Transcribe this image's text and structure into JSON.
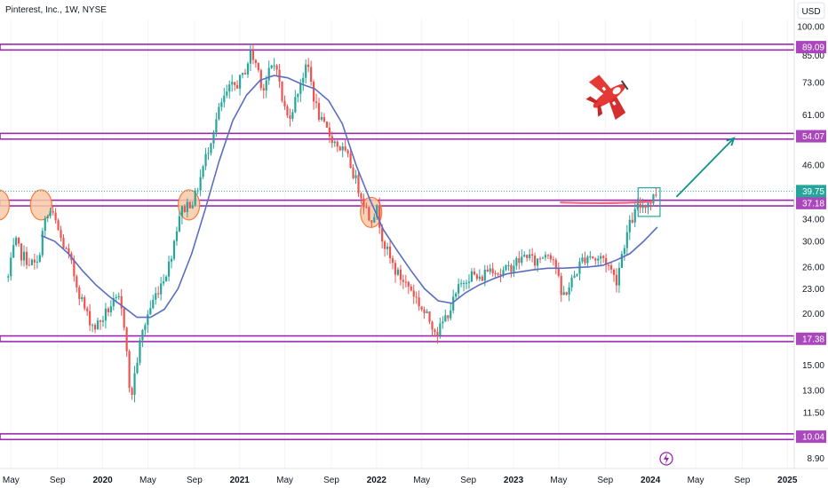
{
  "header": {
    "title": "Pinterest, Inc., 1W, NYSE",
    "currency_label": "USD"
  },
  "colors": {
    "up": "#26a69a",
    "down": "#ef5350",
    "ma_line": "#5b6dbf",
    "level_line": "#9c27b0",
    "level_tag": "#ab47bc",
    "current_price": "#26a69a",
    "circle_fill": "#f8c9a8",
    "circle_stroke": "#f57c3a",
    "arrow": "#11928a",
    "red_line": "#f06a7e",
    "airplane": "#e53935",
    "lightning": "#9c27b0"
  },
  "icons": {
    "airplane": "airplane-icon",
    "lightning": "lightning-icon"
  },
  "chart_data": {
    "type": "candlestick",
    "title": "Pinterest, Inc., 1W, NYSE",
    "currency": "USD",
    "y_scale": "log",
    "ylim": [
      8.4,
      104
    ],
    "xlim": [
      2019.25,
      2025.05
    ],
    "y_ticks": [
      8.9,
      11.5,
      13.0,
      15.0,
      17.38,
      20.0,
      23.0,
      26.0,
      30.0,
      34.0,
      37.18,
      39.75,
      46.0,
      54.07,
      61.0,
      73.0,
      85.0,
      89.09,
      100.0
    ],
    "y_tick_labels": [
      "8.90",
      "11.50",
      "13.00",
      "15.00",
      "17.38",
      "20.00",
      "23.00",
      "26.00",
      "30.00",
      "34.00",
      "37.18",
      "39.75",
      "46.00",
      "54.07",
      "61.00",
      "73.00",
      "85.00",
      "89.09",
      "100.00"
    ],
    "x_ticks": [
      {
        "x": 2019.33,
        "label": "May",
        "bold": false
      },
      {
        "x": 2019.67,
        "label": "Sep",
        "bold": false
      },
      {
        "x": 2020.0,
        "label": "2020",
        "bold": true
      },
      {
        "x": 2020.33,
        "label": "May",
        "bold": false
      },
      {
        "x": 2020.67,
        "label": "Sep",
        "bold": false
      },
      {
        "x": 2021.0,
        "label": "2021",
        "bold": true
      },
      {
        "x": 2021.33,
        "label": "May",
        "bold": false
      },
      {
        "x": 2021.67,
        "label": "Sep",
        "bold": false
      },
      {
        "x": 2022.0,
        "label": "2022",
        "bold": true
      },
      {
        "x": 2022.33,
        "label": "May",
        "bold": false
      },
      {
        "x": 2022.67,
        "label": "Sep",
        "bold": false
      },
      {
        "x": 2023.0,
        "label": "2023",
        "bold": true
      },
      {
        "x": 2023.33,
        "label": "May",
        "bold": false
      },
      {
        "x": 2023.67,
        "label": "Sep",
        "bold": false
      },
      {
        "x": 2024.0,
        "label": "2024",
        "bold": true
      },
      {
        "x": 2024.33,
        "label": "May",
        "bold": false
      },
      {
        "x": 2024.67,
        "label": "Sep",
        "bold": false
      },
      {
        "x": 2025.0,
        "label": "2025",
        "bold": true
      }
    ],
    "horizontal_levels": [
      {
        "price": 89.09,
        "label": "89.09"
      },
      {
        "price": 54.07,
        "label": "54.07"
      },
      {
        "price": 37.18,
        "label": "37.18"
      },
      {
        "price": 17.38,
        "label": "17.38"
      },
      {
        "price": 10.04,
        "label": "10.04"
      }
    ],
    "current_price": {
      "price": 39.75,
      "label": "39.75"
    },
    "price_path": [
      [
        2019.31,
        24.5
      ],
      [
        2019.36,
        30.0
      ],
      [
        2019.4,
        28.0
      ],
      [
        2019.45,
        27.0
      ],
      [
        2019.52,
        26.0
      ],
      [
        2019.57,
        33.0
      ],
      [
        2019.62,
        35.5
      ],
      [
        2019.66,
        33.0
      ],
      [
        2019.7,
        30.0
      ],
      [
        2019.76,
        27.0
      ],
      [
        2019.82,
        23.0
      ],
      [
        2019.88,
        20.0
      ],
      [
        2019.94,
        18.5
      ],
      [
        2020.0,
        19.5
      ],
      [
        2020.06,
        21.0
      ],
      [
        2020.12,
        21.5
      ],
      [
        2020.17,
        18.0
      ],
      [
        2020.2,
        12.0
      ],
      [
        2020.23,
        14.0
      ],
      [
        2020.28,
        17.5
      ],
      [
        2020.33,
        20.0
      ],
      [
        2020.38,
        22.0
      ],
      [
        2020.43,
        24.0
      ],
      [
        2020.48,
        26.0
      ],
      [
        2020.52,
        30.0
      ],
      [
        2020.56,
        35.0
      ],
      [
        2020.62,
        37.0
      ],
      [
        2020.67,
        38.0
      ],
      [
        2020.73,
        45.0
      ],
      [
        2020.8,
        55.0
      ],
      [
        2020.86,
        64.0
      ],
      [
        2020.92,
        70.0
      ],
      [
        2020.97,
        72.0
      ],
      [
        2021.02,
        75.0
      ],
      [
        2021.08,
        86.0
      ],
      [
        2021.13,
        80.0
      ],
      [
        2021.17,
        70.0
      ],
      [
        2021.22,
        78.0
      ],
      [
        2021.27,
        82.0
      ],
      [
        2021.3,
        68.0
      ],
      [
        2021.35,
        60.0
      ],
      [
        2021.4,
        65.0
      ],
      [
        2021.45,
        75.0
      ],
      [
        2021.5,
        80.0
      ],
      [
        2021.55,
        65.0
      ],
      [
        2021.6,
        58.0
      ],
      [
        2021.65,
        55.0
      ],
      [
        2021.7,
        52.0
      ],
      [
        2021.75,
        50.0
      ],
      [
        2021.8,
        47.0
      ],
      [
        2021.85,
        42.0
      ],
      [
        2021.9,
        38.0
      ],
      [
        2021.95,
        34.0
      ],
      [
        2022.0,
        36.0
      ],
      [
        2022.05,
        30.0
      ],
      [
        2022.1,
        27.0
      ],
      [
        2022.15,
        25.0
      ],
      [
        2022.2,
        24.0
      ],
      [
        2022.25,
        23.0
      ],
      [
        2022.3,
        21.5
      ],
      [
        2022.35,
        20.0
      ],
      [
        2022.4,
        19.0
      ],
      [
        2022.45,
        18.0
      ],
      [
        2022.5,
        19.5
      ],
      [
        2022.55,
        21.0
      ],
      [
        2022.6,
        23.0
      ],
      [
        2022.65,
        24.5
      ],
      [
        2022.7,
        25.0
      ],
      [
        2022.75,
        24.0
      ],
      [
        2022.8,
        25.5
      ],
      [
        2022.85,
        26.0
      ],
      [
        2022.9,
        25.0
      ],
      [
        2022.95,
        25.5
      ],
      [
        2023.0,
        26.5
      ],
      [
        2023.05,
        27.0
      ],
      [
        2023.1,
        28.0
      ],
      [
        2023.15,
        26.5
      ],
      [
        2023.2,
        27.5
      ],
      [
        2023.25,
        28.5
      ],
      [
        2023.3,
        27.0
      ],
      [
        2023.35,
        22.0
      ],
      [
        2023.4,
        23.0
      ],
      [
        2023.45,
        25.0
      ],
      [
        2023.5,
        27.0
      ],
      [
        2023.55,
        28.0
      ],
      [
        2023.6,
        27.0
      ],
      [
        2023.65,
        27.5
      ],
      [
        2023.7,
        26.0
      ],
      [
        2023.75,
        24.0
      ],
      [
        2023.8,
        29.0
      ],
      [
        2023.85,
        33.0
      ],
      [
        2023.9,
        36.0
      ],
      [
        2023.95,
        37.0
      ],
      [
        2024.0,
        37.5
      ],
      [
        2024.05,
        39.75
      ]
    ],
    "moving_average": [
      [
        2019.55,
        31.0
      ],
      [
        2019.65,
        30.0
      ],
      [
        2019.75,
        28.0
      ],
      [
        2019.85,
        25.5
      ],
      [
        2019.95,
        23.5
      ],
      [
        2020.05,
        22.0
      ],
      [
        2020.15,
        20.8
      ],
      [
        2020.25,
        19.6
      ],
      [
        2020.35,
        19.6
      ],
      [
        2020.45,
        20.5
      ],
      [
        2020.55,
        23.0
      ],
      [
        2020.65,
        28.0
      ],
      [
        2020.75,
        36.0
      ],
      [
        2020.85,
        47.0
      ],
      [
        2020.95,
        59.0
      ],
      [
        2021.05,
        68.0
      ],
      [
        2021.15,
        74.0
      ],
      [
        2021.25,
        76.0
      ],
      [
        2021.35,
        75.0
      ],
      [
        2021.45,
        72.5
      ],
      [
        2021.55,
        70.5
      ],
      [
        2021.65,
        66.0
      ],
      [
        2021.75,
        58.0
      ],
      [
        2021.85,
        46.0
      ],
      [
        2021.95,
        38.0
      ],
      [
        2022.05,
        32.0
      ],
      [
        2022.15,
        28.5
      ],
      [
        2022.25,
        25.5
      ],
      [
        2022.35,
        23.0
      ],
      [
        2022.45,
        21.5
      ],
      [
        2022.55,
        21.2
      ],
      [
        2022.65,
        22.5
      ],
      [
        2022.75,
        23.5
      ],
      [
        2022.85,
        24.3
      ],
      [
        2022.95,
        25.0
      ],
      [
        2023.05,
        25.3
      ],
      [
        2023.15,
        25.6
      ],
      [
        2023.25,
        25.8
      ],
      [
        2023.35,
        25.8
      ],
      [
        2023.45,
        25.9
      ],
      [
        2023.55,
        26.0
      ],
      [
        2023.65,
        26.2
      ],
      [
        2023.75,
        27.0
      ],
      [
        2023.85,
        28.0
      ],
      [
        2023.95,
        30.0
      ],
      [
        2024.05,
        32.5
      ]
    ],
    "circles": [
      {
        "x": 2019.24,
        "price": 36.8
      },
      {
        "x": 2019.55,
        "price": 36.8
      },
      {
        "x": 2020.63,
        "price": 36.8
      },
      {
        "x": 2021.96,
        "price": 35.3
      }
    ]
  }
}
